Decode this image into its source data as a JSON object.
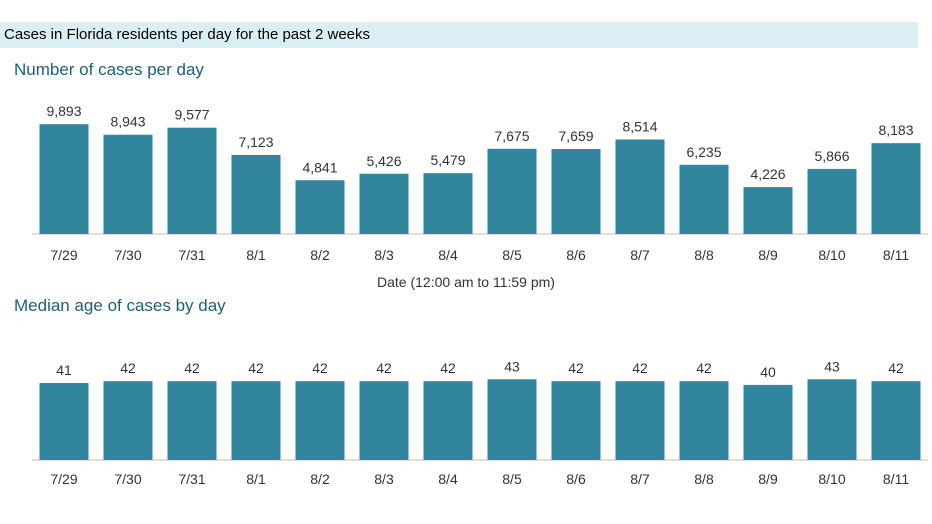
{
  "header": {
    "title": "Cases in Florida residents per day for the past 2 weeks"
  },
  "colors": {
    "bar": "#31859c",
    "axis": "#bfbfbf",
    "title": "#1f5f73",
    "header_bg": "#daeef3"
  },
  "chart_data": [
    {
      "type": "bar",
      "title": "Number of cases per day",
      "xlabel": "Date (12:00 am to 11:59 pm)",
      "ylabel": "",
      "categories": [
        "7/29",
        "7/30",
        "7/31",
        "8/1",
        "8/2",
        "8/3",
        "8/4",
        "8/5",
        "8/6",
        "8/7",
        "8/8",
        "8/9",
        "8/10",
        "8/11"
      ],
      "values": [
        9893,
        8943,
        9577,
        7123,
        4841,
        5426,
        5479,
        7675,
        7659,
        8514,
        6235,
        4226,
        5866,
        8183
      ],
      "labels": [
        "9,893",
        "8,943",
        "9,577",
        "7,123",
        "4,841",
        "5,426",
        "5,479",
        "7,675",
        "7,659",
        "8,514",
        "6,235",
        "4,226",
        "5,866",
        "8,183"
      ],
      "ylim": [
        0,
        10000
      ],
      "grid": false
    },
    {
      "type": "bar",
      "title": "Median age of cases by day",
      "xlabel": "",
      "ylabel": "",
      "categories": [
        "7/29",
        "7/30",
        "7/31",
        "8/1",
        "8/2",
        "8/3",
        "8/4",
        "8/5",
        "8/6",
        "8/7",
        "8/8",
        "8/9",
        "8/10",
        "8/11"
      ],
      "values": [
        41,
        42,
        42,
        42,
        42,
        42,
        42,
        43,
        42,
        42,
        42,
        40,
        43,
        42
      ],
      "labels": [
        "41",
        "42",
        "42",
        "42",
        "42",
        "42",
        "42",
        "43",
        "42",
        "42",
        "42",
        "40",
        "43",
        "42"
      ],
      "ylim": [
        0,
        49
      ],
      "grid": false
    }
  ]
}
